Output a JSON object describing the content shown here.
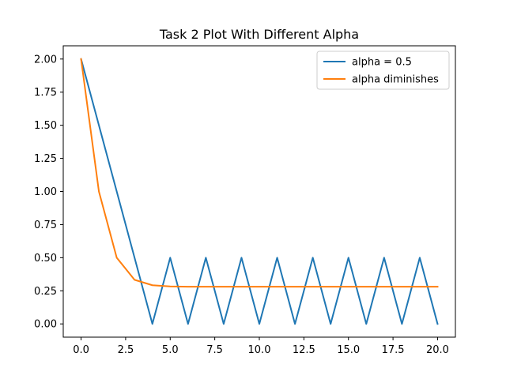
{
  "chart_data": {
    "type": "line",
    "title": "Task 2 Plot With Different Alpha",
    "xlabel": "",
    "ylabel": "",
    "xlim": [
      -1,
      21
    ],
    "ylim": [
      -0.1,
      2.1
    ],
    "xticks": [
      0,
      2.5,
      5,
      7.5,
      10,
      12.5,
      15,
      17.5,
      20
    ],
    "xtick_labels": [
      "0.0",
      "2.5",
      "5.0",
      "7.5",
      "10.0",
      "12.5",
      "15.0",
      "17.5",
      "20.0"
    ],
    "yticks": [
      0,
      0.25,
      0.5,
      0.75,
      1.0,
      1.25,
      1.5,
      1.75,
      2.0
    ],
    "ytick_labels": [
      "0.00",
      "0.25",
      "0.50",
      "0.75",
      "1.00",
      "1.25",
      "1.50",
      "1.75",
      "2.00"
    ],
    "grid": false,
    "legend_position": "upper right",
    "series": [
      {
        "name": "alpha = 0.5",
        "color": "#1f77b4",
        "x": [
          0,
          1,
          2,
          3,
          4,
          5,
          6,
          7,
          8,
          9,
          10,
          11,
          12,
          13,
          14,
          15,
          16,
          17,
          18,
          19,
          20
        ],
        "y": [
          2.0,
          1.5,
          1.0,
          0.5,
          0.0,
          0.5,
          0.0,
          0.5,
          0.0,
          0.5,
          0.0,
          0.5,
          0.0,
          0.5,
          0.0,
          0.5,
          0.0,
          0.5,
          0.0,
          0.5,
          0.0
        ]
      },
      {
        "name": "alpha diminishes",
        "color": "#ff7f0e",
        "x": [
          0,
          1,
          2,
          3,
          4,
          5,
          6,
          7,
          8,
          9,
          10,
          11,
          12,
          13,
          14,
          15,
          16,
          17,
          18,
          19,
          20
        ],
        "y": [
          2.0,
          1.0,
          0.5,
          0.333,
          0.292,
          0.283,
          0.281,
          0.281,
          0.281,
          0.281,
          0.281,
          0.281,
          0.281,
          0.281,
          0.281,
          0.281,
          0.281,
          0.281,
          0.281,
          0.281,
          0.281
        ]
      }
    ]
  }
}
